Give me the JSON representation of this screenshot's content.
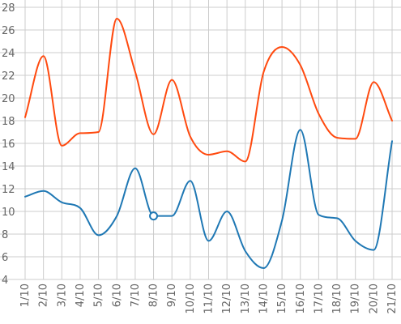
{
  "chart_data": {
    "type": "line",
    "categories": [
      "1/10",
      "2/10",
      "3/10",
      "4/10",
      "5/10",
      "6/10",
      "7/10",
      "8/10",
      "9/10",
      "10/10",
      "11/10",
      "12/10",
      "13/10",
      "14/10",
      "15/10",
      "16/10",
      "17/10",
      "18/10",
      "19/10",
      "20/10",
      "21/10"
    ],
    "series": [
      {
        "color": "#ff4a0f",
        "values": [
          18.3,
          23.7,
          15.8,
          16.9,
          17.0,
          27.0,
          22.3,
          16.8,
          21.6,
          16.6,
          15.0,
          15.3,
          14.4,
          22.3,
          24.5,
          22.9,
          18.6,
          16.5,
          16.4,
          21.4,
          18.0
        ]
      },
      {
        "color": "#1f78b4",
        "values": [
          11.3,
          11.8,
          10.8,
          10.3,
          7.9,
          9.6,
          13.8,
          9.6,
          9.6,
          12.7,
          7.4,
          10.0,
          6.5,
          5.0,
          9.2,
          17.2,
          9.7,
          9.4,
          7.4,
          6.6,
          16.2
        ]
      }
    ],
    "marker": {
      "series": 1,
      "category": "8/10"
    },
    "ylim": [
      4,
      28
    ],
    "yticks": [
      4,
      6,
      8,
      10,
      12,
      14,
      16,
      18,
      20,
      22,
      24,
      26,
      28
    ],
    "grid": true,
    "legend": "none",
    "title": "",
    "xlabel": "",
    "ylabel": ""
  }
}
